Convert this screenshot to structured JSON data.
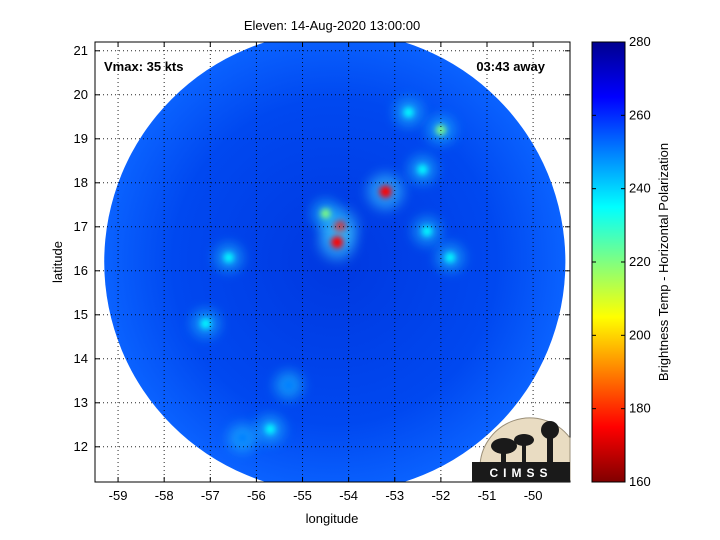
{
  "chart_data": {
    "type": "heatmap",
    "title": "Eleven: 14-Aug-2020 13:00:00",
    "xlabel": "longitude",
    "ylabel": "latitude",
    "xlim": [
      -59.5,
      -49.2
    ],
    "ylim": [
      11.2,
      21.2
    ],
    "xticks": [
      -59,
      -58,
      -57,
      -56,
      -55,
      -54,
      -53,
      -52,
      -51,
      -50
    ],
    "yticks": [
      12,
      13,
      14,
      15,
      16,
      17,
      18,
      19,
      20,
      21
    ],
    "grid": true,
    "annotations": {
      "vmax": "Vmax: 35 kts",
      "away": "03:43 away"
    },
    "colorbar": {
      "label": "Brightness Temp - Horizontal Polarization",
      "min": 160,
      "max": 280,
      "ticks": [
        160,
        180,
        200,
        220,
        240,
        260,
        280
      ],
      "colormap": [
        "#800000",
        "#ff0000",
        "#ff8000",
        "#ffff00",
        "#80ff80",
        "#00ffff",
        "#0080ff",
        "#0000ff",
        "#00008f"
      ]
    },
    "swath": {
      "center": [
        -54.3,
        16.2
      ],
      "radius_deg": 5.0,
      "background_temp": 262
    },
    "features": [
      {
        "lon": -54.2,
        "lat": 17.0,
        "temp": 175
      },
      {
        "lon": -54.25,
        "lat": 16.65,
        "temp": 180
      },
      {
        "lon": -53.2,
        "lat": 17.8,
        "temp": 178
      },
      {
        "lon": -54.5,
        "lat": 17.3,
        "temp": 225
      },
      {
        "lon": -52.4,
        "lat": 18.3,
        "temp": 235
      },
      {
        "lon": -52.0,
        "lat": 19.2,
        "temp": 225
      },
      {
        "lon": -52.7,
        "lat": 19.6,
        "temp": 240
      },
      {
        "lon": -52.3,
        "lat": 16.9,
        "temp": 228
      },
      {
        "lon": -51.8,
        "lat": 16.3,
        "temp": 230
      },
      {
        "lon": -57.1,
        "lat": 14.8,
        "temp": 238
      },
      {
        "lon": -56.6,
        "lat": 16.3,
        "temp": 242
      },
      {
        "lon": -55.7,
        "lat": 12.4,
        "temp": 240
      },
      {
        "lon": -55.3,
        "lat": 13.4,
        "temp": 243
      },
      {
        "lon": -56.3,
        "lat": 12.2,
        "temp": 243
      }
    ]
  },
  "logo": {
    "text": "CIMSS"
  }
}
